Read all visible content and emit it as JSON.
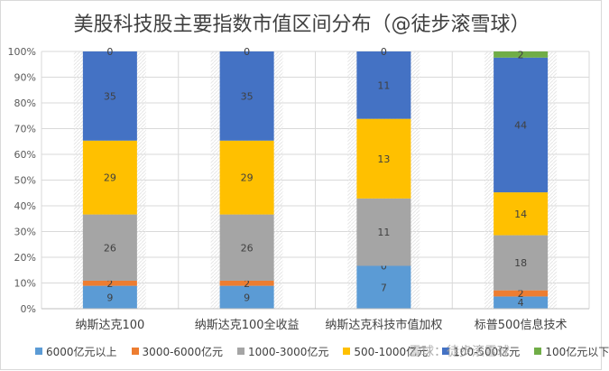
{
  "chart_data": {
    "type": "bar",
    "stacked": "percent",
    "title": "美股科技股主要指数市值区间分布（@徒步滚雪球）",
    "xlabel": "",
    "ylabel": "",
    "ylim": [
      0,
      100
    ],
    "yticks": [
      "0%",
      "10%",
      "20%",
      "30%",
      "40%",
      "50%",
      "60%",
      "70%",
      "80%",
      "90%",
      "100%"
    ],
    "categories": [
      "纳斯达克100",
      "纳斯达克100全收益",
      "纳斯达克科技市值加权",
      "标普500信息技术"
    ],
    "grid": true,
    "legend_position": "bottom",
    "series": [
      {
        "name": "6000亿元以上",
        "color": "#5b9bd5",
        "values": [
          9,
          9,
          7,
          4
        ]
      },
      {
        "name": "3000-6000亿元",
        "color": "#ed7d31",
        "values": [
          2,
          2,
          0,
          2
        ]
      },
      {
        "name": "1000-3000亿元",
        "color": "#a5a5a5",
        "values": [
          26,
          26,
          11,
          18
        ]
      },
      {
        "name": "500-1000亿元",
        "color": "#ffc000",
        "values": [
          29,
          29,
          13,
          14
        ]
      },
      {
        "name": "100-500亿元",
        "color": "#4472c4",
        "values": [
          35,
          35,
          11,
          44
        ]
      },
      {
        "name": "100亿元以下",
        "color": "#70ad47",
        "values": [
          0,
          0,
          0,
          2
        ]
      }
    ]
  },
  "legend_labels": [
    "6000亿元以上",
    "3000-6000亿元",
    "1000-3000亿元",
    "500-1000亿元",
    "100-500亿元",
    "100亿元以下"
  ],
  "watermark": "雪球：徒步滚雪球"
}
